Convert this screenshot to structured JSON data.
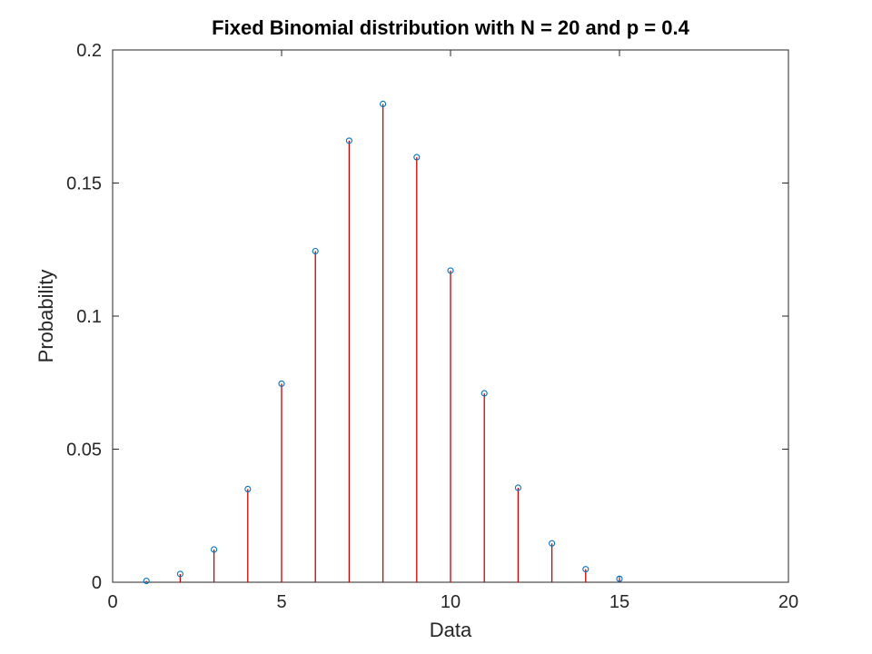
{
  "chart_data": {
    "type": "stem",
    "title": "Fixed Binomial distribution with N = 20 and p = 0.4",
    "xlabel": "Data",
    "ylabel": "Probability",
    "xlim": [
      0,
      20
    ],
    "ylim": [
      0,
      0.2
    ],
    "xticks": [
      0,
      5,
      10,
      15,
      20
    ],
    "xtick_labels": [
      "0",
      "5",
      "10",
      "15",
      "20"
    ],
    "yticks": [
      0,
      0.05,
      0.1,
      0.15,
      0.2
    ],
    "ytick_labels": [
      "0",
      "0.05",
      "0.1",
      "0.15",
      "0.2"
    ],
    "grid": false,
    "stem_color": "#cc0000",
    "marker_color": "#0072bd",
    "axis_color": "#262626",
    "x": [
      1,
      2,
      3,
      4,
      5,
      6,
      7,
      8,
      9,
      10,
      11,
      12,
      13,
      14,
      15
    ],
    "y": [
      0.0005,
      0.0031,
      0.0123,
      0.035,
      0.0746,
      0.1244,
      0.1659,
      0.1797,
      0.1597,
      0.1171,
      0.071,
      0.0355,
      0.0146,
      0.0049,
      0.0013
    ]
  }
}
